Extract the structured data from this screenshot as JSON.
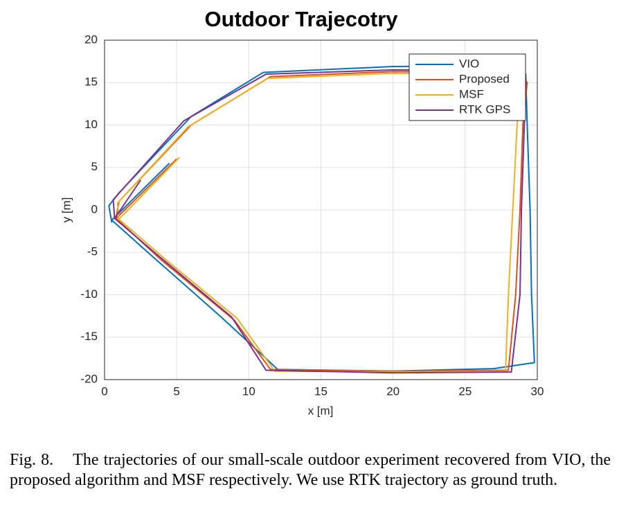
{
  "chart_data": {
    "type": "line",
    "title": "Outdoor Trajecotry",
    "x_label": "x [m]",
    "y_label": "y [m]",
    "xlim": [
      0,
      30
    ],
    "xticks": [
      0,
      5,
      10,
      15,
      20,
      25,
      30
    ],
    "ylim": [
      -20,
      20
    ],
    "yticks": [
      -20,
      -15,
      -10,
      -5,
      0,
      5,
      10,
      15,
      20
    ],
    "grid": true,
    "legend": "northeast",
    "series": [
      {
        "name": "VIO",
        "color": "#0072bd",
        "x": [
          4.5,
          0.5,
          3,
          8,
          11,
          12,
          20,
          27,
          29.8,
          29.6,
          29.5,
          29.3,
          29.2,
          28.5,
          20,
          11,
          6,
          1,
          0.3,
          0.5
        ],
        "values": [
          5.5,
          -1.2,
          -5,
          -12.5,
          -17.2,
          -18.8,
          -19,
          -18.7,
          -18,
          -10,
          0,
          10,
          16,
          17,
          16.9,
          16.2,
          11,
          2,
          0.5,
          -1.5
        ]
      },
      {
        "name": "Proposed",
        "color": "#d95319",
        "x": [
          5,
          0.8,
          4,
          9,
          11.5,
          20,
          28,
          28.5,
          28.8,
          29,
          29.3,
          28.8,
          20,
          11.5,
          6,
          1,
          0.8
        ],
        "values": [
          6,
          -1,
          -6,
          -13,
          -18.8,
          -19,
          -18.9,
          -10,
          0,
          10,
          15,
          16.2,
          16.3,
          15.7,
          10,
          1,
          -1
        ]
      },
      {
        "name": "MSF",
        "color": "#edb120",
        "x": [
          5.2,
          1,
          4.2,
          9.2,
          11.8,
          20,
          27.8,
          28,
          28.3,
          28.6,
          28.9,
          28.5,
          20,
          11.3,
          5.8,
          0.9,
          1
        ],
        "values": [
          6.2,
          -1.1,
          -5.8,
          -12.8,
          -19,
          -19.1,
          -19,
          -10,
          0,
          10,
          15.2,
          16,
          16.1,
          15.5,
          9.8,
          0.8,
          -1.2
        ]
      },
      {
        "name": "RTK GPS",
        "color": "#7e2f8e",
        "x": [
          2.5,
          0.7,
          3.8,
          8.8,
          11.2,
          20,
          28.2,
          28.8,
          28.9,
          29.1,
          29.2,
          28.6,
          20,
          11.2,
          5.5,
          0.6,
          0.7
        ],
        "values": [
          3.5,
          -1,
          -5.5,
          -12.6,
          -18.9,
          -19.2,
          -19.1,
          -10,
          0,
          10,
          15.5,
          16.4,
          16.5,
          16,
          10.5,
          1.2,
          -1
        ]
      }
    ]
  },
  "caption": {
    "label": "Fig. 8.",
    "text": "The trajectories of our small-scale outdoor experiment recovered from VIO, the proposed algorithm and MSF respectively. We use RTK trajectory as ground truth."
  }
}
